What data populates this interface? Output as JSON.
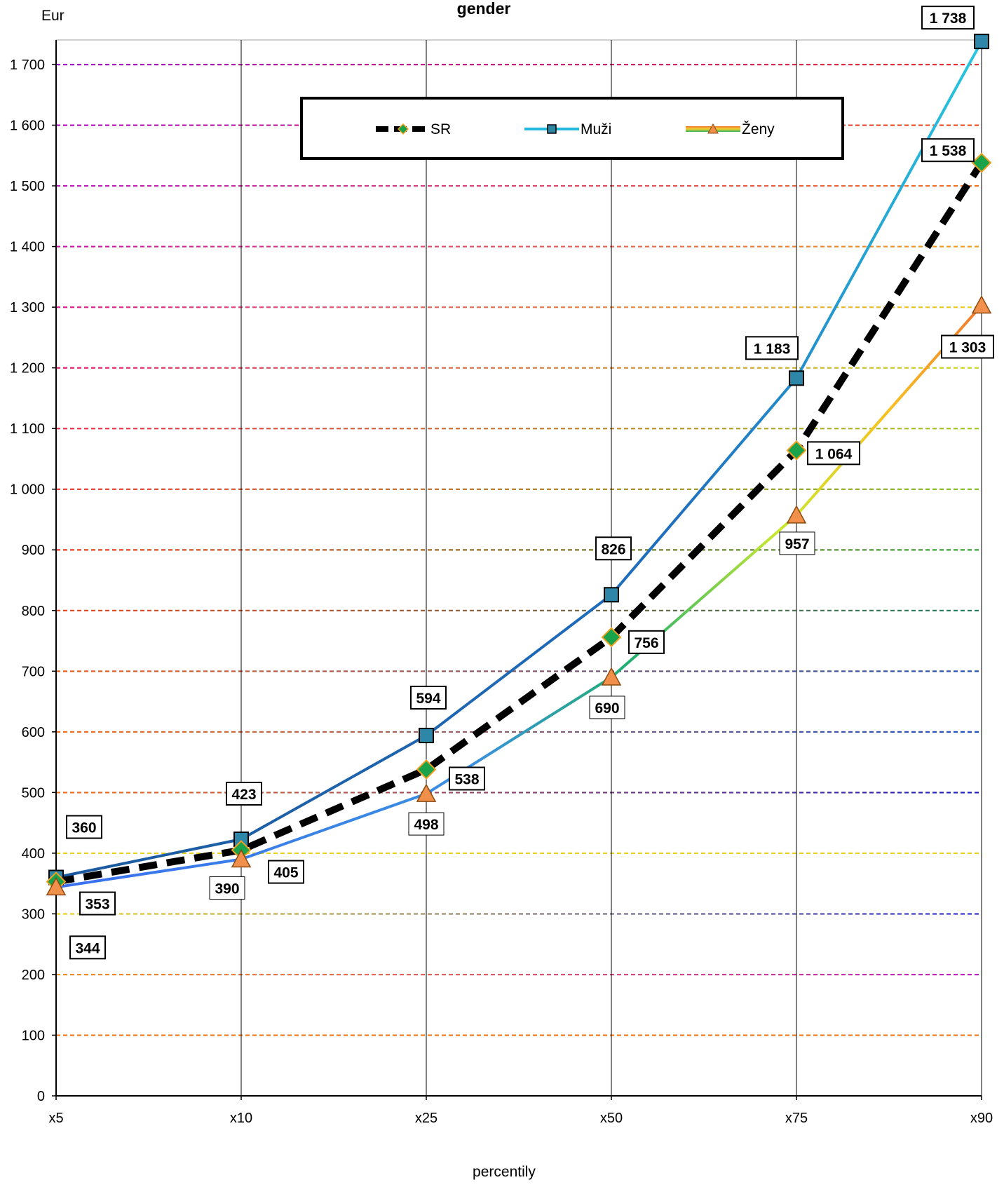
{
  "chart_data": {
    "type": "line",
    "title": "gender",
    "ylabel": "Eur",
    "xlabel": "percentily",
    "categories": [
      "x5",
      "x10",
      "x25",
      "x50",
      "x75",
      "x90"
    ],
    "ylim": [
      0,
      1750
    ],
    "yticks": [
      0,
      100,
      200,
      300,
      400,
      500,
      600,
      700,
      800,
      900,
      1000,
      1100,
      1200,
      1300,
      1400,
      1500,
      1600,
      1700
    ],
    "ytick_labels": [
      "0",
      "100",
      "200",
      "300",
      "400",
      "500",
      "600",
      "700",
      "800",
      "900",
      "1 000",
      "1 100",
      "1 200",
      "1 300",
      "1 400",
      "1 500",
      "1 600",
      "1 700"
    ],
    "grid": true,
    "legend_position": "top-center",
    "series": [
      {
        "name": "SR",
        "values": [
          353,
          405,
          538,
          756,
          1064,
          1538
        ],
        "labels": [
          "353",
          "405",
          "538",
          "756",
          "1 064",
          "1 538"
        ],
        "color": "#000000",
        "marker": "diamond",
        "marker_fill": "#1aa34a",
        "marker_edge": "#f0a020"
      },
      {
        "name": "Muži",
        "values": [
          360,
          423,
          594,
          826,
          1183,
          1738
        ],
        "labels": [
          "360",
          "423",
          "594",
          "826",
          "1 183",
          "1 738"
        ],
        "color": "#1f6fb5",
        "marker": "square",
        "marker_fill": "#2e86a8",
        "marker_edge": "#000000"
      },
      {
        "name": "Ženy",
        "values": [
          344,
          390,
          498,
          690,
          957,
          1303
        ],
        "labels": [
          "344",
          "390",
          "498",
          "690",
          "957",
          "1 303"
        ],
        "color": "#f08a30",
        "marker": "triangle",
        "marker_fill": "#f0904a",
        "marker_edge": "#8a4a10"
      }
    ]
  }
}
